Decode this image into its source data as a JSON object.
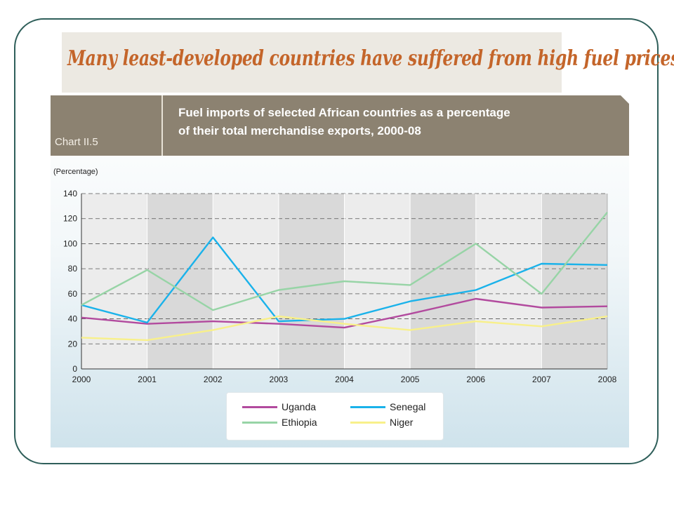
{
  "slide": {
    "headline": "Many least-developed countries have suffered from high fuel prices"
  },
  "chart_header": {
    "chart_number": "Chart II.5",
    "subtitle_line1": "Fuel imports of selected African countries as a percentage",
    "subtitle_line2": "of their total merchandise exports, 2000-08"
  },
  "colors": {
    "frame": "#2f5f5a",
    "headline": "#c4652a",
    "header_band": "#8c8271"
  },
  "chart_data": {
    "type": "line",
    "unit_label": "(Percentage)",
    "x": [
      2000,
      2001,
      2002,
      2003,
      2004,
      2005,
      2006,
      2007,
      2008
    ],
    "ylim": [
      0,
      140
    ],
    "yticks": [
      0,
      20,
      40,
      60,
      80,
      100,
      120,
      140
    ],
    "grid": true,
    "legend_position": "bottom-center",
    "series": [
      {
        "name": "Uganda",
        "color": "#b24a9e",
        "values": [
          41,
          36,
          38,
          36,
          33,
          44,
          56,
          49,
          50
        ]
      },
      {
        "name": "Senegal",
        "color": "#1ab2ea",
        "values": [
          51,
          37,
          105,
          38,
          40,
          54,
          63,
          84,
          83
        ]
      },
      {
        "name": "Ethiopia",
        "color": "#97d4a6",
        "values": [
          51,
          79,
          47,
          63,
          70,
          67,
          100,
          60,
          125
        ]
      },
      {
        "name": "Niger",
        "color": "#f8f08a",
        "values": [
          25,
          23,
          31,
          42,
          36,
          31,
          38,
          34,
          42
        ]
      }
    ]
  }
}
